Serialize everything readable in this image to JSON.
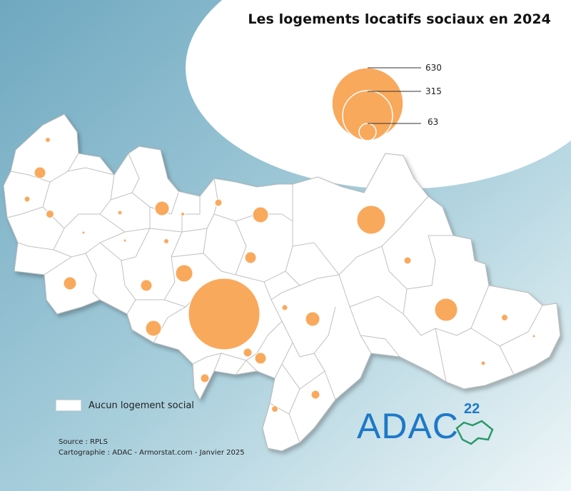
{
  "map": {
    "title": "Les logements locatifs sociaux en 2024",
    "legend_size_values": [
      "630",
      "315",
      "63"
    ],
    "legend_none_label": "Aucun logement social",
    "source": "Source : RPLS",
    "credits": "Cartographie : ADAC - Armorstat.com - Janvier 2025",
    "logo_text": "ADAC",
    "logo_superscript": "22",
    "colors": {
      "symbol": "#f9a95c",
      "commune_fill": "#ffffff",
      "commune_stroke": "#b8b8b8",
      "sea": "#7fb3c8",
      "logo_blue": "#1e78c8",
      "logo_green": "#2a9a6a"
    }
  }
}
